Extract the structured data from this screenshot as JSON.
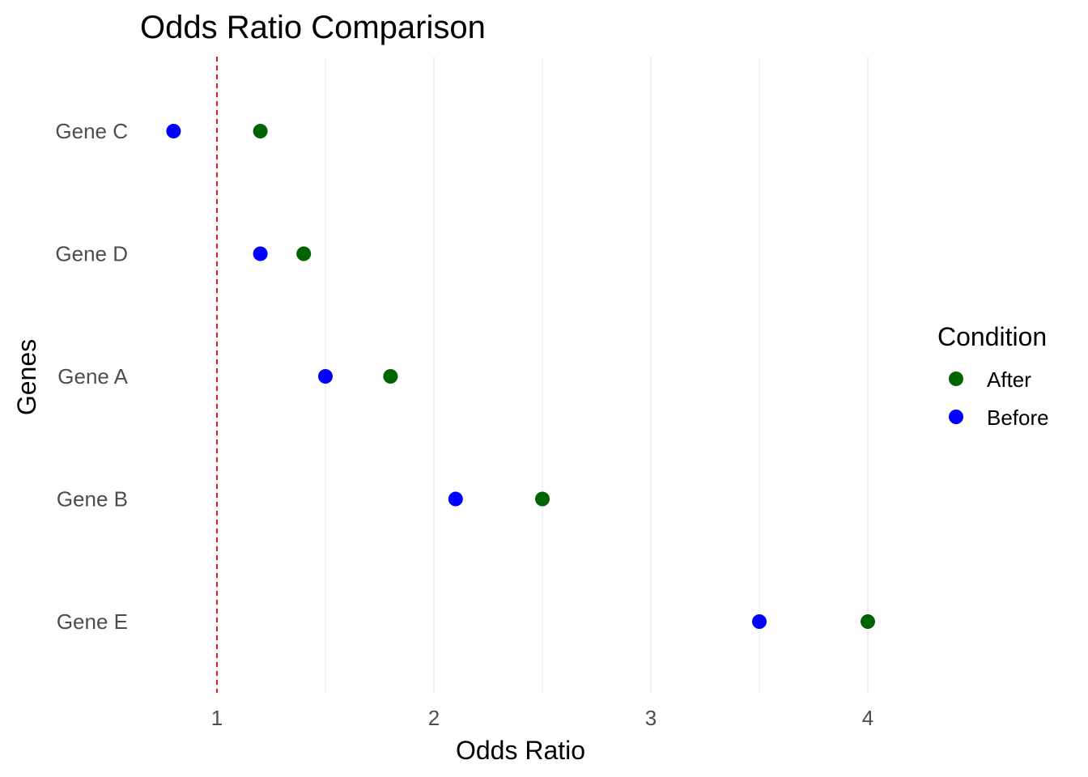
{
  "chart_data": {
    "type": "scatter",
    "title": "Odds Ratio Comparison",
    "xlabel": "Odds Ratio",
    "ylabel": "Genes",
    "categories": [
      "Gene C",
      "Gene D",
      "Gene A",
      "Gene B",
      "Gene E"
    ],
    "x_ticks": [
      "1",
      "2",
      "3",
      "4"
    ],
    "xlim": [
      0.6,
      4.4
    ],
    "grid": "vertical major and minor",
    "reference_line": {
      "x": 1,
      "color": "#e41a1c",
      "style": "dashed"
    },
    "legend": {
      "title": "Condition",
      "position": "right"
    },
    "series": [
      {
        "name": "After",
        "color": "#006400",
        "values": [
          1.2,
          1.4,
          1.8,
          2.5,
          4.0
        ]
      },
      {
        "name": "Before",
        "color": "#0000ff",
        "values": [
          0.8,
          1.2,
          1.5,
          2.1,
          3.5
        ]
      }
    ]
  }
}
